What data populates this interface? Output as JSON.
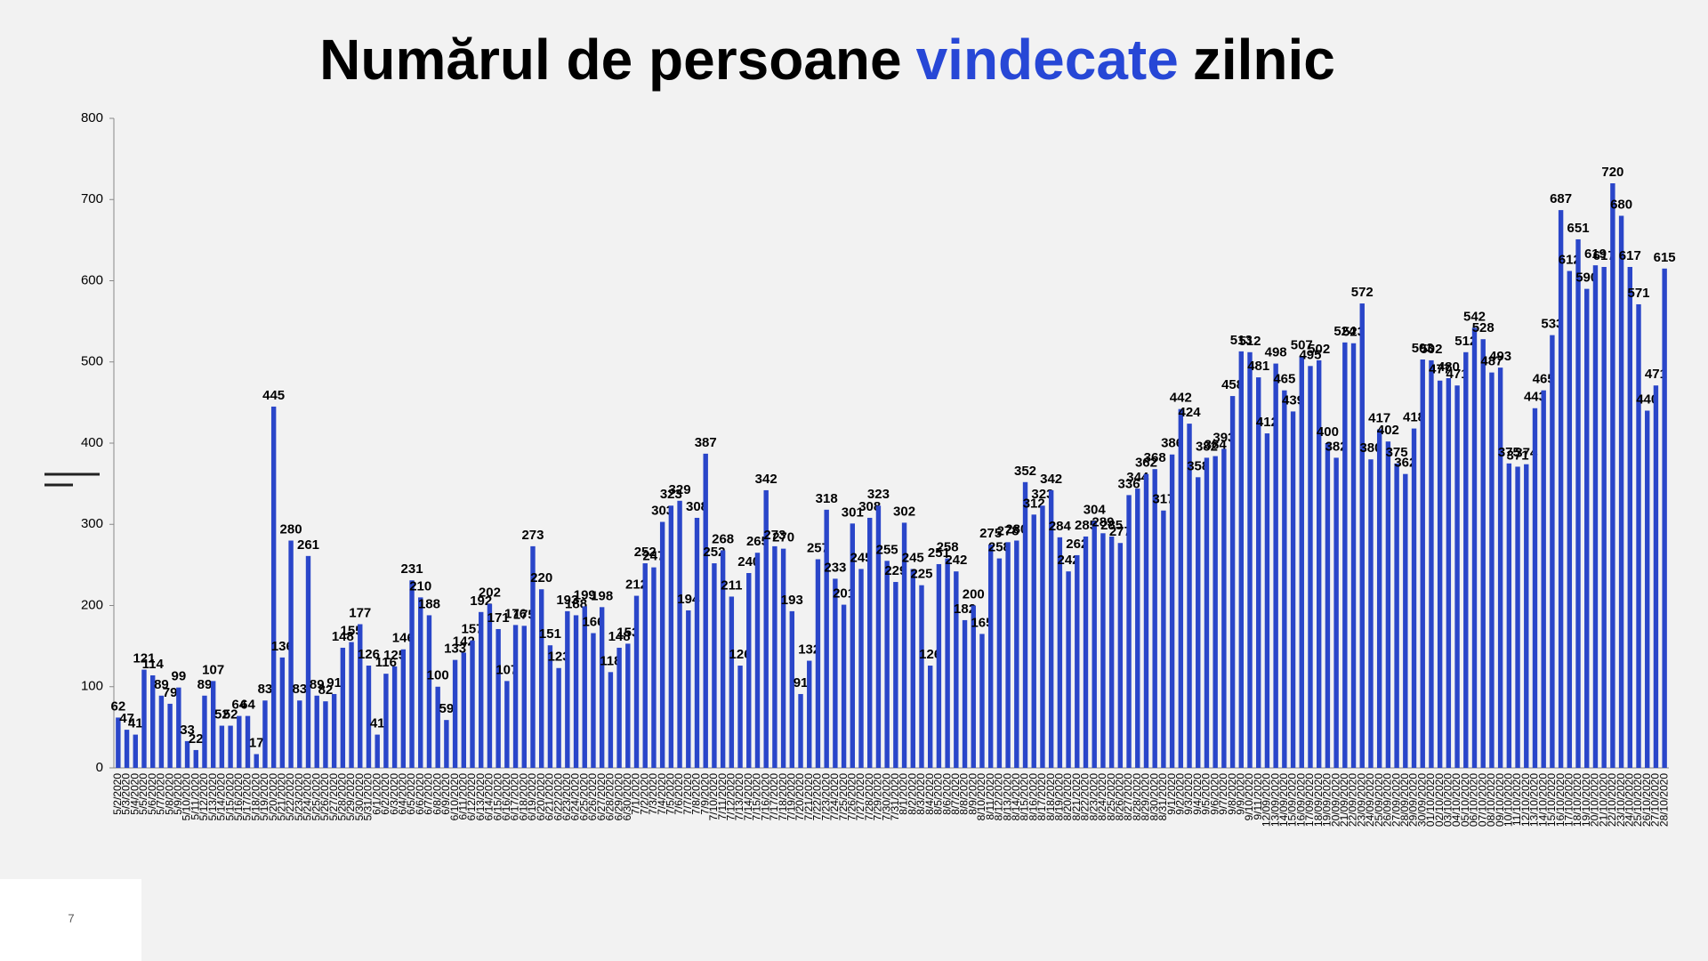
{
  "chart_data": {
    "type": "bar",
    "title_parts": [
      "Numărul de persoane",
      "vindecate",
      "zilnic"
    ],
    "title_colors": [
      "#000000",
      "#2747d6",
      "#000000"
    ],
    "color": "#2a46c9",
    "ylim": [
      0,
      800
    ],
    "yticks": [
      0,
      100,
      200,
      300,
      400,
      500,
      600,
      700,
      800
    ],
    "categories": [
      "5/2/2020",
      "5/3/2020",
      "5/4/2020",
      "5/5/2020",
      "5/6/2020",
      "5/7/2020",
      "5/8/2020",
      "5/9/2020",
      "5/10/2020",
      "5/11/2020",
      "5/12/2020",
      "5/13/2020",
      "5/14/2020",
      "5/15/2020",
      "5/16/2020",
      "5/17/2020",
      "5/18/2020",
      "5/19/2020",
      "5/20/2020",
      "5/21/2020",
      "5/22/2020",
      "5/23/2020",
      "5/24/2020",
      "5/25/2020",
      "5/26/2020",
      "5/27/2020",
      "5/28/2020",
      "5/29/2020",
      "5/30/2020",
      "5/31/2020",
      "6/1/2020",
      "6/2/2020",
      "6/3/2020",
      "6/4/2020",
      "6/5/2020",
      "6/6/2020",
      "6/7/2020",
      "6/8/2020",
      "6/9/2020",
      "6/10/2020",
      "6/11/2020",
      "6/12/2020",
      "6/13/2020",
      "6/14/2020",
      "6/15/2020",
      "6/16/2020",
      "6/17/2020",
      "6/18/2020",
      "6/19/2020",
      "6/20/2020",
      "6/21/2020",
      "6/22/2020",
      "6/23/2020",
      "6/24/2020",
      "6/25/2020",
      "6/26/2020",
      "6/27/2020",
      "6/28/2020",
      "6/29/2020",
      "6/30/2020",
      "7/1/2020",
      "7/2/2020",
      "7/3/2020",
      "7/4/2020",
      "7/5/2020",
      "7/6/2020",
      "7/7/2020",
      "7/8/2020",
      "7/9/2020",
      "7/10/2020",
      "7/11/2020",
      "7/12/2020",
      "7/13/2020",
      "7/14/2020",
      "7/15/2020",
      "7/16/2020",
      "7/17/2020",
      "7/18/2020",
      "7/19/2020",
      "7/20/2020",
      "7/21/2020",
      "7/22/2020",
      "7/23/2020",
      "7/24/2020",
      "7/25/2020",
      "7/26/2020",
      "7/27/2020",
      "7/28/2020",
      "7/29/2020",
      "7/30/2020",
      "7/31/2020",
      "8/1/2020",
      "8/2/2020",
      "8/3/2020",
      "8/4/2020",
      "8/5/2020",
      "8/6/2020",
      "8/7/2020",
      "8/8/2020",
      "8/9/2020",
      "8/10/2020",
      "8/11/2020",
      "8/12/2020",
      "8/13/2020",
      "8/14/2020",
      "8/15/2020",
      "8/16/2020",
      "8/17/2020",
      "8/18/2020",
      "8/19/2020",
      "8/20/2020",
      "8/21/2020",
      "8/22/2020",
      "8/23/2020",
      "8/24/2020",
      "8/25/2020",
      "8/26/2020",
      "8/27/2020",
      "8/28/2020",
      "8/29/2020",
      "8/30/2020",
      "8/31/2020",
      "9/1/2020",
      "9/2/2020",
      "9/3/2020",
      "9/4/2020",
      "9/5/2020",
      "9/6/2020",
      "9/7/2020",
      "9/8/2020",
      "9/9/2020",
      "9/10/2020",
      "9/11/2020",
      "12/09/2020",
      "13/09/2020",
      "14/09/2020",
      "15/09/2020",
      "16/09/2020",
      "17/09/2020",
      "18/09/2020",
      "19/09/2020",
      "20/09/2020",
      "21/09/2020",
      "22/09/2020",
      "23/09/2020",
      "24/09/2020",
      "25/09/2020",
      "26/09/2020",
      "27/09/2020",
      "28/09/2020",
      "29/09/2020",
      "30/09/2020",
      "01/10/2020",
      "02/10/2020",
      "03/10/2020",
      "04/10/2020",
      "05/10/2020",
      "06/10/2020",
      "07/10/2020",
      "08/10/2020",
      "09/10/2020",
      "10/10/2020",
      "11/10/2020",
      "12/10/2020",
      "13/10/2020",
      "14/10/2020",
      "15/10/2020",
      "16/10/2020",
      "17/10/2020",
      "18/10/2020",
      "19/10/2020",
      "20/10/2020",
      "21/10/2020",
      "22/10/2020",
      "23/10/2020",
      "24/10/2020",
      "25/10/2020",
      "26/10/2020",
      "27/10/2020",
      "28/10/2020"
    ],
    "values": [
      62,
      47,
      41,
      121,
      114,
      89,
      79,
      99,
      33,
      22,
      89,
      107,
      52,
      52,
      64,
      64,
      17,
      83,
      445,
      136,
      280,
      83,
      261,
      89,
      82,
      91,
      148,
      155,
      177,
      126,
      41,
      116,
      125,
      146,
      231,
      210,
      188,
      100,
      59,
      133,
      142,
      157,
      192,
      202,
      171,
      107,
      176,
      175,
      273,
      220,
      151,
      123,
      193,
      188,
      199,
      166,
      198,
      118,
      148,
      153,
      212,
      252,
      247,
      303,
      323,
      329,
      194,
      308,
      387,
      252,
      268,
      211,
      126,
      240,
      265,
      342,
      273,
      270,
      193,
      91,
      132,
      257,
      318,
      233,
      201,
      301,
      245,
      308,
      323,
      255,
      229,
      302,
      245,
      225,
      126,
      251,
      258,
      242,
      182,
      200,
      165,
      275,
      258,
      278,
      280,
      352,
      312,
      323,
      342,
      284,
      242,
      262,
      285,
      304,
      289,
      285,
      277,
      336,
      344,
      362,
      368,
      317,
      386,
      442,
      424,
      358,
      382,
      384,
      393,
      458,
      513,
      512,
      481,
      412,
      498,
      465,
      439,
      507,
      495,
      502,
      400,
      382,
      524,
      523,
      572,
      380,
      417,
      402,
      375,
      362,
      418,
      503,
      502,
      477,
      480,
      471,
      512,
      542,
      528,
      487,
      493,
      375,
      371,
      374,
      443,
      465,
      533,
      687,
      612,
      651,
      590,
      619,
      617,
      720,
      680,
      617,
      571,
      440,
      471,
      615
    ]
  },
  "page_number": "7"
}
